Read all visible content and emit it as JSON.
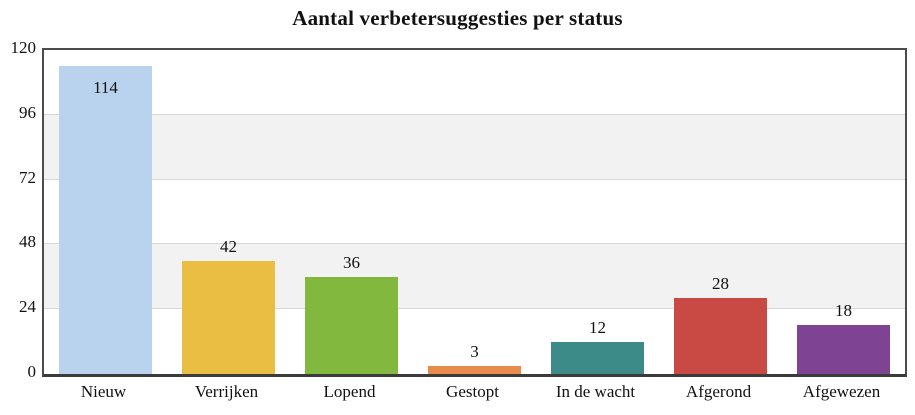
{
  "chart_data": {
    "type": "bar",
    "title": "Aantal verbetersuggesties per status",
    "categories": [
      "Nieuw",
      "Verrijken",
      "Lopend",
      "Gestopt",
      "In de wacht",
      "Afgerond",
      "Afgewezen"
    ],
    "values": [
      114,
      42,
      36,
      3,
      12,
      28,
      18
    ],
    "bar_colors": [
      "#b9d3ee",
      "#eabd43",
      "#81b83d",
      "#e78c4d",
      "#3d8b88",
      "#c94a44",
      "#7e4392"
    ],
    "y_ticks": [
      0,
      24,
      48,
      72,
      96,
      120
    ],
    "ylim": [
      0,
      120
    ],
    "xlabel": "",
    "ylabel": "",
    "grid": true,
    "legend_position": "none",
    "value_labels": "above bars (inside bar top for tallest bar)",
    "plot_background": "alternating horizontal bands white / light gray per 24 units",
    "band_gray": "#f2f2f2",
    "gridline_color": "#d8d8d8",
    "frame_color": "#4c4c4c",
    "axis_color": "#3b3b3b",
    "text_color": "#111111"
  }
}
